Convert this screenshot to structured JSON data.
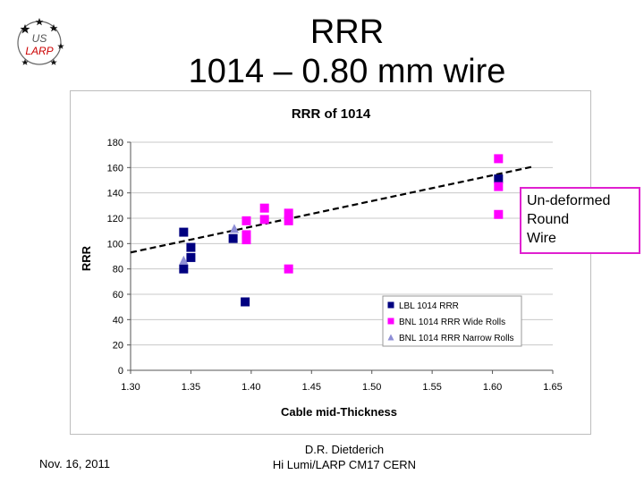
{
  "slide": {
    "title_line1": "RRR",
    "title_line2": "1014 – 0.80 mm wire",
    "logo_line1": "US",
    "logo_line2": "LARP",
    "callout_lines": [
      "Un-deformed",
      "Round",
      "Wire"
    ],
    "footer_date": "Nov. 16, 2011",
    "footer_author_line1": "D.R. Dietderich",
    "footer_author_line2": "Hi Lumi/LARP CM17 CERN"
  },
  "colors": {
    "lbl": "#000080",
    "bnl_wide": "#ff00ff",
    "bnl_narrow": "#8e8ed6",
    "callout_border": "#e020d0",
    "logo": "#cc0000"
  },
  "chart_data": {
    "type": "scatter",
    "title": "RRR of 1014",
    "xlabel": "Cable mid-Thickness",
    "ylabel": "RRR",
    "xlim": [
      1.3,
      1.65
    ],
    "ylim": [
      0,
      180
    ],
    "x_ticks": [
      "1.30",
      "1.35",
      "1.40",
      "1.45",
      "1.50",
      "1.55",
      "1.60",
      "1.65"
    ],
    "y_ticks": [
      "0",
      "20",
      "40",
      "60",
      "80",
      "100",
      "120",
      "140",
      "160",
      "180"
    ],
    "grid": "horizontal",
    "legend_position": "bottom-right",
    "series": [
      {
        "name": "LBL 1014 RRR",
        "marker": "square",
        "color": "#000080",
        "points": [
          {
            "x": 1.344,
            "y": 109
          },
          {
            "x": 1.344,
            "y": 80
          },
          {
            "x": 1.35,
            "y": 97
          },
          {
            "x": 1.35,
            "y": 89
          },
          {
            "x": 1.385,
            "y": 104
          },
          {
            "x": 1.395,
            "y": 54
          },
          {
            "x": 1.605,
            "y": 151
          }
        ]
      },
      {
        "name": "BNL 1014 RRR Wide Rolls",
        "marker": "square",
        "color": "#ff00ff",
        "points": [
          {
            "x": 1.396,
            "y": 118
          },
          {
            "x": 1.396,
            "y": 107
          },
          {
            "x": 1.396,
            "y": 103
          },
          {
            "x": 1.411,
            "y": 128
          },
          {
            "x": 1.411,
            "y": 119
          },
          {
            "x": 1.431,
            "y": 124
          },
          {
            "x": 1.431,
            "y": 118
          },
          {
            "x": 1.431,
            "y": 80
          },
          {
            "x": 1.605,
            "y": 167
          },
          {
            "x": 1.605,
            "y": 145
          },
          {
            "x": 1.605,
            "y": 123
          }
        ]
      },
      {
        "name": "BNL 1014 RRR Narrow  Rolls",
        "marker": "triangle",
        "color": "#8e8ed6",
        "points": [
          {
            "x": 1.344,
            "y": 87
          },
          {
            "x": 1.386,
            "y": 112
          }
        ]
      }
    ],
    "trendline": {
      "style": "dashed",
      "from": {
        "x": 1.3,
        "y": 93
      },
      "to": {
        "x": 1.635,
        "y": 161
      }
    }
  }
}
